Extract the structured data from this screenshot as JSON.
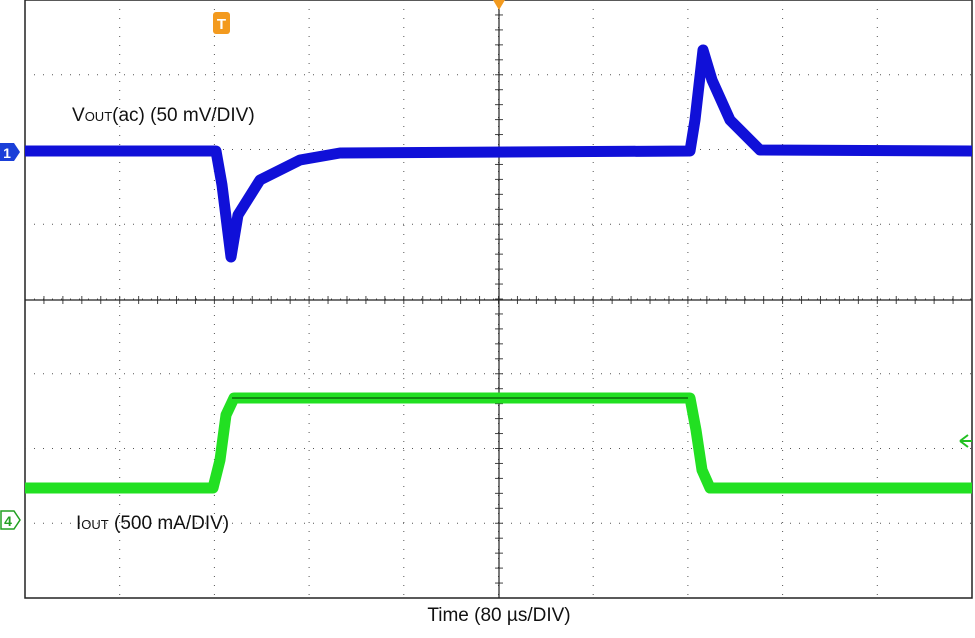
{
  "vout_label": {
    "main": "V",
    "sub": "OUT",
    "rest": "(ac) (50 mV/DIV)"
  },
  "iout_label": {
    "main": "I",
    "sub": "OUT",
    "rest": " (500 mA/DIV)"
  },
  "time_label": "Time (80 µs/DIV)",
  "markers": {
    "trigger": "T",
    "channel_1": "1",
    "channel_4": "4"
  }
}
